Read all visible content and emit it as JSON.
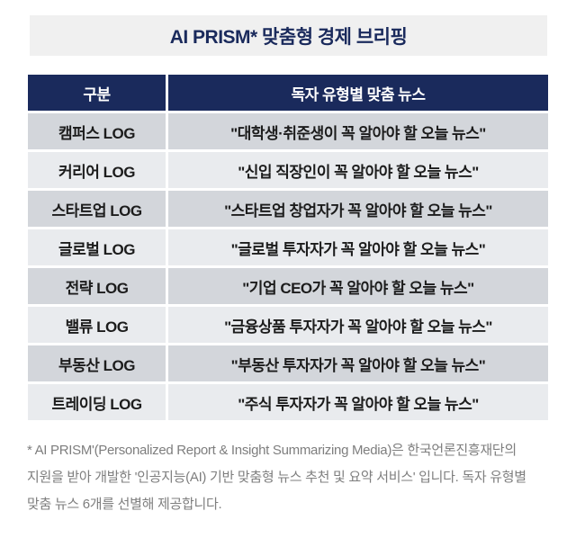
{
  "title": "AI PRISM* 맞춤형 경제 브리핑",
  "table": {
    "headers": {
      "category": "구분",
      "news": "독자 유형별 맞춤 뉴스"
    },
    "rows": [
      {
        "category": "캠퍼스 LOG",
        "news": "\"대학생·취준생이 꼭 알아야 할 오늘 뉴스\""
      },
      {
        "category": "커리어 LOG",
        "news": "\"신입 직장인이 꼭 알아야 할 오늘 뉴스\""
      },
      {
        "category": "스타트업 LOG",
        "news": "\"스타트업 창업자가 꼭 알아야 할 오늘 뉴스\""
      },
      {
        "category": "글로벌 LOG",
        "news": "\"글로벌 투자자가 꼭 알아야 할 오늘 뉴스\""
      },
      {
        "category": "전략 LOG",
        "news": "\"기업 CEO가 꼭 알아야 할 오늘 뉴스\""
      },
      {
        "category": "밸류 LOG",
        "news": "\"금융상품 투자자가 꼭 알아야 할 오늘 뉴스\""
      },
      {
        "category": "부동산 LOG",
        "news": "\"부동산 투자자가 꼭 알아야 할 오늘 뉴스\""
      },
      {
        "category": "트레이딩 LOG",
        "news": "\"주식 투자자가 꼭 알아야 할 오늘 뉴스\""
      }
    ]
  },
  "footnote": "* AI PRISM'(Personalized Report & Insight Summarizing Media)은 한국언론진흥재단의 지원을 받아 개발한 '인공지능(AI) 기반 맞춤형 뉴스 추천 및 요약 서비스' 입니다. 독자 유형별 맞춤 뉴스 6개를 선별해 제공합니다.",
  "colors": {
    "navy": "#1a2a5c",
    "title_bg": "#f0f0f0",
    "row_dark": "#d3d6db",
    "row_light": "#e9ebee",
    "cell_text": "#1c1c1c",
    "header_text": "#ffffff",
    "footnote_text": "#7e7e7e",
    "page_bg": "#ffffff"
  },
  "chart_data": {
    "type": "table",
    "title": "AI PRISM* 맞춤형 경제 브리핑",
    "columns": [
      "구분",
      "독자 유형별 맞춤 뉴스"
    ],
    "rows": [
      [
        "캠퍼스 LOG",
        "\"대학생·취준생이 꼭 알아야 할 오늘 뉴스\""
      ],
      [
        "커리어 LOG",
        "\"신입 직장인이 꼭 알아야 할 오늘 뉴스\""
      ],
      [
        "스타트업 LOG",
        "\"스타트업 창업자가 꼭 알아야 할 오늘 뉴스\""
      ],
      [
        "글로벌 LOG",
        "\"글로벌 투자자가 꼭 알아야 할 오늘 뉴스\""
      ],
      [
        "전략 LOG",
        "\"기업 CEO가 꼭 알아야 할 오늘 뉴스\""
      ],
      [
        "밸류 LOG",
        "\"금융상품 투자자가 꼭 알아야 할 오늘 뉴스\""
      ],
      [
        "부동산 LOG",
        "\"부동산 투자자가 꼭 알아야 할 오늘 뉴스\""
      ],
      [
        "트레이딩 LOG",
        "\"주식 투자자가 꼭 알아야 할 오늘 뉴스\""
      ]
    ]
  }
}
